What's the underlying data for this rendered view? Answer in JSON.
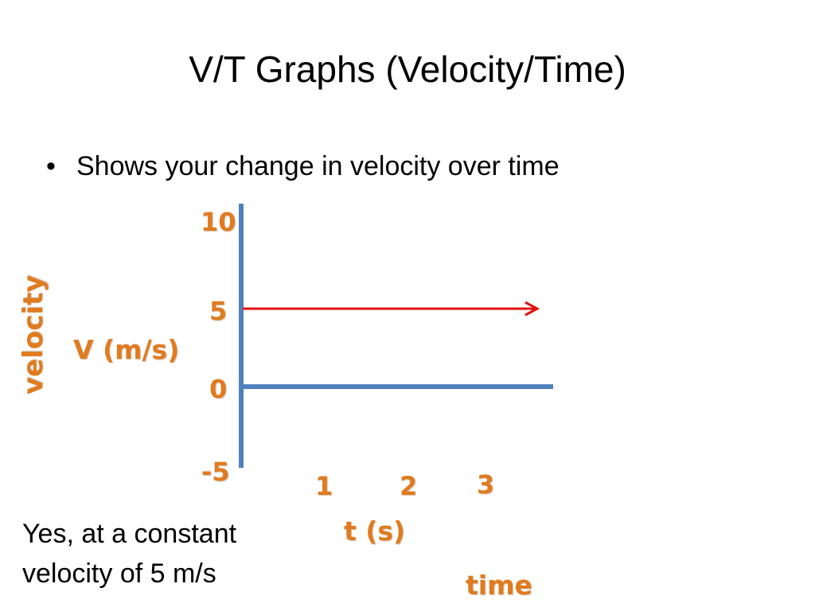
{
  "slide": {
    "title": "V/T Graphs (Velocity/Time)",
    "bullet": "Shows your change in velocity over time",
    "answer_line1": "Yes, at a constant",
    "answer_line2": "velocity of 5 m/s"
  },
  "colors": {
    "axis": "#4f81bd",
    "arrow": "#e01010",
    "label": "#e07b20",
    "text": "#000000"
  },
  "chart_data": {
    "type": "line",
    "y_axis_rotated_label": "velocity",
    "y_axis_label": "V (m/s)",
    "x_axis_label": "t (s)",
    "x_axis_caption": "time",
    "y_tick_labels": [
      "10",
      "5",
      "0",
      "-5"
    ],
    "x_tick_labels": [
      "1",
      "2",
      "3"
    ],
    "ylim": [
      -5,
      10
    ],
    "series": [
      {
        "x": [
          0,
          3.5
        ],
        "y": [
          5,
          5
        ],
        "arrow_end": true
      }
    ]
  }
}
